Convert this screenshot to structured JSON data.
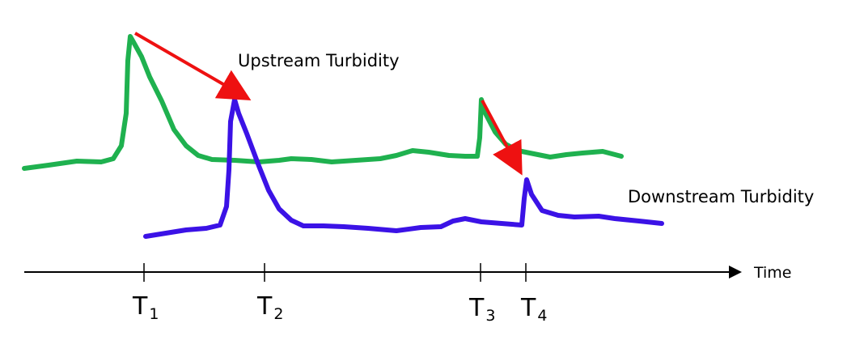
{
  "colors": {
    "upstream": "#1fb14f",
    "downstream": "#3b12e6",
    "arrow": "#ee1111",
    "axis": "#000000"
  },
  "labels": {
    "upstream": "Upstream Turbidity",
    "downstream": "Downstream Turbidity",
    "time_axis": "Time"
  },
  "ticks": [
    {
      "main": "T",
      "sub": "1"
    },
    {
      "main": "T",
      "sub": "2"
    },
    {
      "main": "T",
      "sub": "3"
    },
    {
      "main": "T",
      "sub": "4"
    }
  ]
}
